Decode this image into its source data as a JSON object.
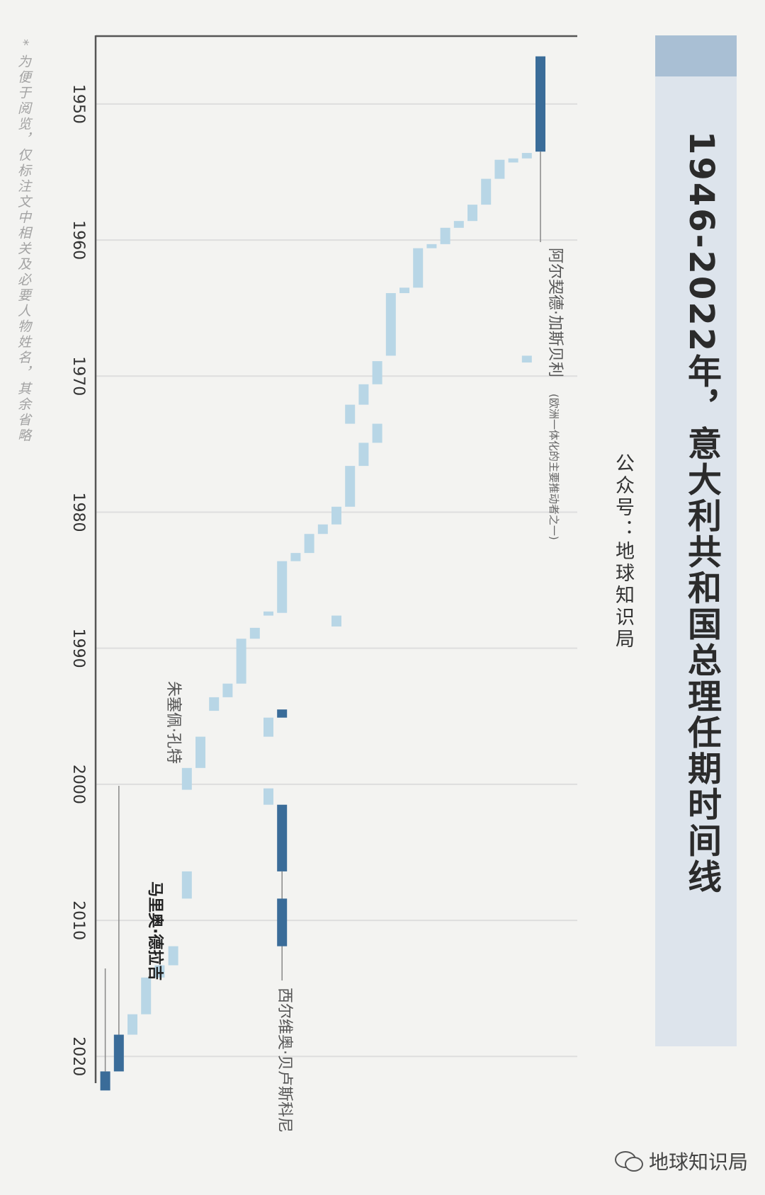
{
  "title": "1946-2022年，意大利共和国总理任期时间线",
  "subtitle": "公众号：地球知识局",
  "footnote": "* 为便于阅览，仅标注文中相关及必要人物姓名，其余省略",
  "watermark": "地球知识局",
  "colors": {
    "highlight": "#3a6c99",
    "regular": "#b8d6e6",
    "grid": "#dedede",
    "axis": "#555555",
    "title_bg": "#dde4ec",
    "title_accent": "#a9bfd4"
  },
  "chart_data": {
    "type": "gantt",
    "orientation": "time axis runs top to bottom",
    "title": "1946-2022年，意大利共和国总理任期时间线",
    "time_range": [
      1946,
      2023
    ],
    "ticks": [
      1950,
      1960,
      1970,
      1980,
      1990,
      2000,
      2010,
      2020
    ],
    "grid": true,
    "terms": [
      {
        "start": 1946.5,
        "end": 1953.5,
        "highlight": true,
        "label": "阿尔契德·加斯贝利",
        "note": "(欧洲一体化的主要推动者之一)"
      },
      {
        "start": 1953.6,
        "end": 1954.0,
        "highlight": false
      },
      {
        "start": 1954.0,
        "end": 1954.3,
        "highlight": false
      },
      {
        "start": 1954.1,
        "end": 1955.5,
        "highlight": false
      },
      {
        "start": 1955.5,
        "end": 1957.4,
        "highlight": false
      },
      {
        "start": 1957.4,
        "end": 1958.6,
        "highlight": false
      },
      {
        "start": 1958.6,
        "end": 1959.1,
        "highlight": false
      },
      {
        "start": 1959.1,
        "end": 1960.3,
        "highlight": false
      },
      {
        "start": 1960.3,
        "end": 1960.6,
        "highlight": false
      },
      {
        "start": 1960.6,
        "end": 1963.5,
        "highlight": false
      },
      {
        "start": 1963.5,
        "end": 1963.9,
        "highlight": false
      },
      {
        "start": 1963.9,
        "end": 1968.5,
        "highlight": false
      },
      {
        "start": 1968.5,
        "end": 1969.0,
        "highlight": false
      },
      {
        "start": 1968.9,
        "end": 1970.6,
        "highlight": false
      },
      {
        "start": 1970.6,
        "end": 1972.1,
        "highlight": false
      },
      {
        "start": 1972.1,
        "end": 1973.5,
        "highlight": false
      },
      {
        "start": 1973.5,
        "end": 1974.9,
        "highlight": false
      },
      {
        "start": 1974.9,
        "end": 1976.6,
        "highlight": false
      },
      {
        "start": 1976.6,
        "end": 1979.6,
        "highlight": false
      },
      {
        "start": 1979.6,
        "end": 1980.9,
        "highlight": false
      },
      {
        "start": 1980.9,
        "end": 1981.6,
        "highlight": false
      },
      {
        "start": 1981.6,
        "end": 1983.0,
        "highlight": false
      },
      {
        "start": 1983.0,
        "end": 1983.6,
        "highlight": false
      },
      {
        "start": 1983.6,
        "end": 1987.4,
        "highlight": false
      },
      {
        "start": 1987.3,
        "end": 1987.6,
        "highlight": false
      },
      {
        "start": 1987.6,
        "end": 1988.4,
        "highlight": false
      },
      {
        "start": 1988.5,
        "end": 1989.3,
        "highlight": false
      },
      {
        "start": 1989.3,
        "end": 1992.6,
        "highlight": false
      },
      {
        "start": 1992.6,
        "end": 1993.6,
        "highlight": false
      },
      {
        "start": 1993.6,
        "end": 1994.6,
        "highlight": false
      },
      {
        "start": 1994.5,
        "end": 1995.1,
        "highlight": true
      },
      {
        "start": 1995.1,
        "end": 1996.5,
        "highlight": false
      },
      {
        "start": 1996.5,
        "end": 1998.8,
        "highlight": false
      },
      {
        "start": 1998.8,
        "end": 2000.4,
        "highlight": false
      },
      {
        "start": 2000.3,
        "end": 2001.5,
        "highlight": false
      },
      {
        "start": 2001.5,
        "end": 2006.4,
        "highlight": true,
        "label": "西尔维奥·贝卢斯科尼"
      },
      {
        "start": 2006.4,
        "end": 2008.4,
        "highlight": false
      },
      {
        "start": 2008.4,
        "end": 2011.9,
        "highlight": true
      },
      {
        "start": 2011.9,
        "end": 2013.3,
        "highlight": false
      },
      {
        "start": 2013.3,
        "end": 2014.2,
        "highlight": false
      },
      {
        "start": 2014.2,
        "end": 2016.9,
        "highlight": false
      },
      {
        "start": 2016.9,
        "end": 2018.4,
        "highlight": false
      },
      {
        "start": 2018.4,
        "end": 2021.1,
        "highlight": true,
        "label": "朱塞佩·孔特"
      },
      {
        "start": 2021.1,
        "end": 2022.5,
        "highlight": true,
        "label": "马里奥·德拉吉"
      }
    ]
  }
}
